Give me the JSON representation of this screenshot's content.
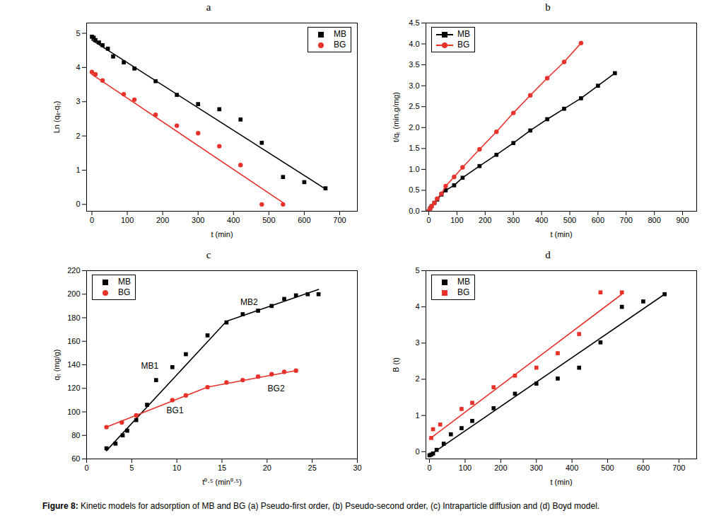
{
  "caption": "Figure 8: Kinetic models for adsorption of MB and BG (a) Pseudo-first order, (b) Pseudo-second order, (c) Intraparticle diffusion and (d) Boyd model.",
  "chart_data": [
    {
      "title": "a",
      "type": "scatter",
      "x_label": "t (min)",
      "y_label": "Ln (qₑ-qₜ)",
      "xlim": [
        -15,
        750
      ],
      "ylim": [
        -0.2,
        5.3
      ],
      "xticks": [
        0,
        100,
        200,
        300,
        400,
        500,
        600,
        700
      ],
      "yticks": [
        0,
        1,
        2,
        3,
        4,
        5
      ],
      "legend": "top-right",
      "series": [
        {
          "name": "MB",
          "color": "#000000",
          "marker": "square",
          "x": [
            0,
            5,
            10,
            20,
            30,
            45,
            60,
            90,
            120,
            180,
            240,
            300,
            360,
            420,
            480,
            540,
            600,
            660
          ],
          "values": [
            4.9,
            4.87,
            4.8,
            4.73,
            4.65,
            4.55,
            4.32,
            4.15,
            3.97,
            3.6,
            3.2,
            2.93,
            2.78,
            2.48,
            1.8,
            0.8,
            0.65,
            0.47
          ],
          "fit": [
            {
              "x": [
                0,
                660
              ],
              "y": [
                4.8,
                0.45
              ]
            }
          ]
        },
        {
          "name": "BG",
          "color": "#e8312a",
          "marker": "circle",
          "x": [
            0,
            10,
            30,
            90,
            120,
            180,
            240,
            300,
            360,
            420,
            480,
            540
          ],
          "values": [
            3.87,
            3.8,
            3.62,
            3.22,
            3.06,
            2.62,
            2.3,
            2.08,
            1.7,
            1.15,
            0,
            0
          ],
          "fit": [
            {
              "x": [
                0,
                540
              ],
              "y": [
                3.8,
                0.05
              ]
            }
          ]
        }
      ]
    },
    {
      "title": "b",
      "type": "line",
      "x_label": "t (min)",
      "y_label": "t/qₜ (min.g/mg)",
      "xlim": [
        -10,
        950
      ],
      "ylim": [
        0,
        4.5
      ],
      "xticks": [
        0,
        100,
        200,
        300,
        400,
        500,
        600,
        700,
        800,
        900
      ],
      "yticks": [
        {
          "value": 0,
          "label": "0.0"
        },
        {
          "value": 0.5,
          "label": "0.5"
        },
        {
          "value": 1,
          "label": "1.0"
        },
        {
          "value": 1.5,
          "label": "1.5"
        },
        {
          "value": 2,
          "label": "2.0"
        },
        {
          "value": 2.5,
          "label": "2.5"
        },
        {
          "value": 3,
          "label": "3.0"
        },
        {
          "value": 3.5,
          "label": "3.5"
        },
        {
          "value": 4,
          "label": "4.0"
        },
        {
          "value": 4.5,
          "label": "4.5"
        }
      ],
      "legend": "top-left",
      "series": [
        {
          "name": "MB",
          "color": "#000000",
          "marker": "square",
          "line_style": "solid",
          "x": [
            0,
            5,
            10,
            20,
            30,
            45,
            60,
            90,
            120,
            180,
            240,
            300,
            360,
            420,
            480,
            540,
            600,
            660
          ],
          "values": [
            0,
            0.07,
            0.12,
            0.2,
            0.28,
            0.4,
            0.5,
            0.62,
            0.8,
            1.08,
            1.35,
            1.63,
            1.93,
            2.2,
            2.45,
            2.7,
            3.0,
            3.3
          ]
        },
        {
          "name": "BG",
          "color": "#e8312a",
          "marker": "circle",
          "line_style": "solid",
          "x": [
            0,
            5,
            10,
            20,
            30,
            45,
            60,
            90,
            120,
            180,
            240,
            300,
            360,
            420,
            480,
            540
          ],
          "values": [
            0,
            0.06,
            0.12,
            0.2,
            0.3,
            0.42,
            0.6,
            0.82,
            1.05,
            1.48,
            1.9,
            2.35,
            2.77,
            3.18,
            3.57,
            4.02
          ]
        }
      ]
    },
    {
      "title": "c",
      "type": "scatter",
      "x_label": "t⁰·⁵ (min⁰·⁵)",
      "y_label": "qₜ (mg/g)",
      "xlim": [
        0,
        30
      ],
      "ylim": [
        60,
        220
      ],
      "xticks": [
        0,
        5,
        10,
        15,
        20,
        25,
        30
      ],
      "yticks": [
        60,
        80,
        100,
        120,
        140,
        160,
        180,
        200,
        220
      ],
      "legend": "top-left",
      "series": [
        {
          "name": "MB",
          "color": "#000000",
          "marker": "square",
          "x": [
            2.2,
            3.2,
            4.0,
            4.5,
            5.5,
            6.7,
            7.7,
            9.5,
            11.0,
            13.4,
            15.5,
            17.3,
            19.0,
            20.5,
            21.9,
            23.2,
            24.5,
            25.7
          ],
          "values": [
            69,
            73,
            80,
            84,
            93,
            106,
            127,
            138,
            149,
            165,
            176,
            183,
            186,
            190,
            196,
            199,
            200,
            200
          ],
          "fit": [
            {
              "x": [
                2.2,
                15.5
              ],
              "y": [
                67,
                177
              ]
            },
            {
              "x": [
                15.5,
                25.7
              ],
              "y": [
                177,
                204
              ]
            }
          ]
        },
        {
          "name": "BG",
          "color": "#e8312a",
          "marker": "circle",
          "x": [
            2.2,
            3.9,
            5.5,
            9.5,
            11.0,
            13.4,
            15.5,
            17.3,
            19.0,
            20.5,
            21.9,
            23.2
          ],
          "values": [
            87,
            91,
            97,
            110,
            114,
            121,
            125,
            127,
            130,
            132,
            134,
            135
          ],
          "fit": [
            {
              "x": [
                2.2,
                13.4
              ],
              "y": [
                87,
                121
              ]
            },
            {
              "x": [
                13.4,
                23.2
              ],
              "y": [
                121,
                135
              ]
            }
          ]
        }
      ],
      "annotations": [
        {
          "text": "MB1",
          "x": 7.0,
          "y": 139
        },
        {
          "text": "MB2",
          "x": 18.0,
          "y": 193
        },
        {
          "text": "BG1",
          "x": 9.8,
          "y": 101
        },
        {
          "text": "BG2",
          "x": 21.0,
          "y": 120
        }
      ]
    },
    {
      "title": "d",
      "type": "scatter",
      "x_label": "t (min)",
      "y_label": "B (t)",
      "xlim": [
        -10,
        750
      ],
      "ylim": [
        -0.2,
        5
      ],
      "xticks": [
        0,
        100,
        200,
        300,
        400,
        500,
        600,
        700
      ],
      "yticks": [
        0,
        1,
        2,
        3,
        4,
        5
      ],
      "legend": "top-left",
      "series": [
        {
          "name": "MB",
          "color": "#000000",
          "marker": "square",
          "x": [
            0,
            5,
            10,
            20,
            40,
            60,
            90,
            120,
            180,
            240,
            300,
            360,
            420,
            480,
            540,
            600,
            660
          ],
          "values": [
            -0.1,
            -0.08,
            -0.05,
            0.05,
            0.22,
            0.48,
            0.65,
            0.85,
            1.2,
            1.6,
            1.88,
            2.02,
            2.32,
            3.02,
            4.0,
            4.15,
            4.35
          ],
          "fit": [
            {
              "x": [
                0,
                660
              ],
              "y": [
                -0.1,
                4.35
              ]
            }
          ]
        },
        {
          "name": "BG",
          "color": "#e8312a",
          "marker": "square",
          "x": [
            5,
            10,
            30,
            90,
            120,
            180,
            240,
            300,
            360,
            420,
            480,
            540
          ],
          "values": [
            0.38,
            0.62,
            0.75,
            1.18,
            1.35,
            1.78,
            2.1,
            2.32,
            2.72,
            3.25,
            4.4,
            4.4
          ],
          "fit": [
            {
              "x": [
                0,
                540
              ],
              "y": [
                0.35,
                4.35
              ]
            }
          ]
        }
      ]
    }
  ]
}
